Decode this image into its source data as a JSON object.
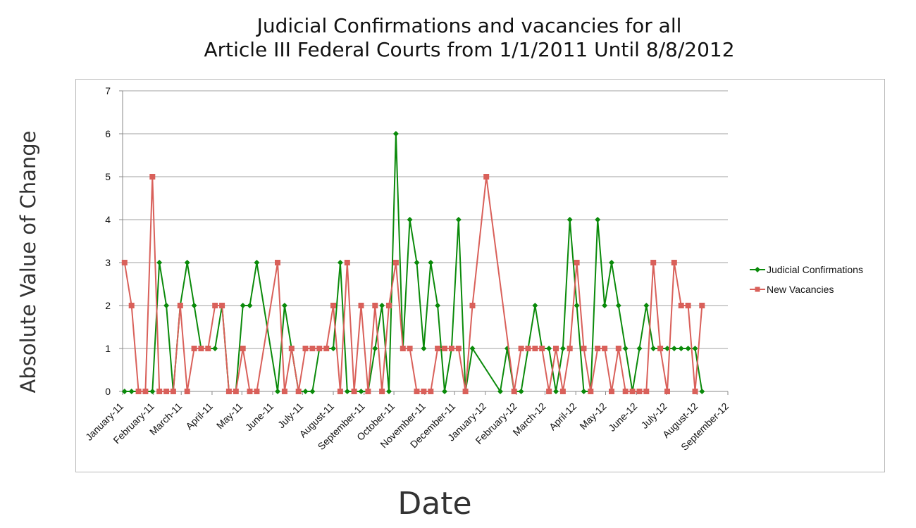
{
  "chart_data": {
    "type": "line",
    "title_lines": [
      "Judicial Confirmations and vacancies for all",
      "Article III Federal Courts from 1/1/2011 Until 8/8/2012"
    ],
    "xlabel": "Date",
    "ylabel": "Absolute Value of Change",
    "ylim": [
      0,
      7
    ],
    "yticks": [
      0,
      1,
      2,
      3,
      4,
      5,
      6,
      7
    ],
    "x_categories": [
      "January-11",
      "February-11",
      "March-11",
      "April-11",
      "May-11",
      "June-11",
      "July-11",
      "August-11",
      "September-11",
      "October-11",
      "November-11",
      "December-11",
      "January-12",
      "February-12",
      "March-12",
      "April-12",
      "May-12",
      "June-12",
      "July-12",
      "August-12",
      "September-12"
    ],
    "grid": true,
    "legend_position": "right",
    "series": [
      {
        "name": "Judicial Confirmations",
        "color": "#0a8a0a",
        "marker": "diamond",
        "points": [
          [
            "2011-01-03",
            0
          ],
          [
            "2011-01-10",
            0
          ],
          [
            "2011-01-17",
            0
          ],
          [
            "2011-01-24",
            0
          ],
          [
            "2011-01-31",
            0
          ],
          [
            "2011-02-07",
            3
          ],
          [
            "2011-02-14",
            2
          ],
          [
            "2011-02-21",
            0
          ],
          [
            "2011-02-28",
            2
          ],
          [
            "2011-03-07",
            3
          ],
          [
            "2011-03-14",
            2
          ],
          [
            "2011-03-21",
            1
          ],
          [
            "2011-03-28",
            1
          ],
          [
            "2011-04-04",
            1
          ],
          [
            "2011-04-11",
            2
          ],
          [
            "2011-04-18",
            0
          ],
          [
            "2011-04-25",
            0
          ],
          [
            "2011-05-02",
            2
          ],
          [
            "2011-05-09",
            2
          ],
          [
            "2011-05-16",
            3
          ],
          [
            "2011-06-06",
            0
          ],
          [
            "2011-06-13",
            2
          ],
          [
            "2011-06-20",
            1
          ],
          [
            "2011-06-27",
            0
          ],
          [
            "2011-07-04",
            0
          ],
          [
            "2011-07-11",
            0
          ],
          [
            "2011-07-18",
            1
          ],
          [
            "2011-07-25",
            1
          ],
          [
            "2011-08-01",
            1
          ],
          [
            "2011-08-08",
            3
          ],
          [
            "2011-08-15",
            0
          ],
          [
            "2011-08-22",
            0
          ],
          [
            "2011-08-29",
            0
          ],
          [
            "2011-09-05",
            0
          ],
          [
            "2011-09-12",
            1
          ],
          [
            "2011-09-19",
            2
          ],
          [
            "2011-09-26",
            0
          ],
          [
            "2011-10-03",
            6
          ],
          [
            "2011-10-10",
            1
          ],
          [
            "2011-10-17",
            4
          ],
          [
            "2011-10-24",
            3
          ],
          [
            "2011-10-31",
            1
          ],
          [
            "2011-11-07",
            3
          ],
          [
            "2011-11-14",
            2
          ],
          [
            "2011-11-21",
            0
          ],
          [
            "2011-11-28",
            1
          ],
          [
            "2011-12-05",
            4
          ],
          [
            "2011-12-12",
            0
          ],
          [
            "2011-12-19",
            1
          ],
          [
            "2012-01-16",
            0
          ],
          [
            "2012-01-23",
            1
          ],
          [
            "2012-01-30",
            0
          ],
          [
            "2012-02-06",
            0
          ],
          [
            "2012-02-13",
            1
          ],
          [
            "2012-02-20",
            2
          ],
          [
            "2012-02-27",
            1
          ],
          [
            "2012-03-05",
            1
          ],
          [
            "2012-03-12",
            0
          ],
          [
            "2012-03-19",
            1
          ],
          [
            "2012-03-26",
            4
          ],
          [
            "2012-04-02",
            2
          ],
          [
            "2012-04-09",
            0
          ],
          [
            "2012-04-16",
            0
          ],
          [
            "2012-04-23",
            4
          ],
          [
            "2012-04-30",
            2
          ],
          [
            "2012-05-07",
            3
          ],
          [
            "2012-05-14",
            2
          ],
          [
            "2012-05-21",
            1
          ],
          [
            "2012-05-28",
            0
          ],
          [
            "2012-06-04",
            1
          ],
          [
            "2012-06-11",
            2
          ],
          [
            "2012-06-18",
            1
          ],
          [
            "2012-06-25",
            1
          ],
          [
            "2012-07-02",
            1
          ],
          [
            "2012-07-09",
            1
          ],
          [
            "2012-07-16",
            1
          ],
          [
            "2012-07-23",
            1
          ],
          [
            "2012-07-30",
            1
          ],
          [
            "2012-08-06",
            0
          ]
        ]
      },
      {
        "name": "New Vacancies",
        "color": "#d9605a",
        "marker": "square",
        "points": [
          [
            "2011-01-03",
            3
          ],
          [
            "2011-01-10",
            2
          ],
          [
            "2011-01-17",
            0
          ],
          [
            "2011-01-24",
            0
          ],
          [
            "2011-01-31",
            5
          ],
          [
            "2011-02-07",
            0
          ],
          [
            "2011-02-14",
            0
          ],
          [
            "2011-02-21",
            0
          ],
          [
            "2011-02-28",
            2
          ],
          [
            "2011-03-07",
            0
          ],
          [
            "2011-03-14",
            1
          ],
          [
            "2011-03-21",
            1
          ],
          [
            "2011-03-28",
            1
          ],
          [
            "2011-04-04",
            2
          ],
          [
            "2011-04-11",
            2
          ],
          [
            "2011-04-18",
            0
          ],
          [
            "2011-04-25",
            0
          ],
          [
            "2011-05-02",
            1
          ],
          [
            "2011-05-09",
            0
          ],
          [
            "2011-05-16",
            0
          ],
          [
            "2011-06-06",
            3
          ],
          [
            "2011-06-13",
            0
          ],
          [
            "2011-06-20",
            1
          ],
          [
            "2011-06-27",
            0
          ],
          [
            "2011-07-04",
            1
          ],
          [
            "2011-07-11",
            1
          ],
          [
            "2011-07-18",
            1
          ],
          [
            "2011-07-25",
            1
          ],
          [
            "2011-08-01",
            2
          ],
          [
            "2011-08-08",
            0
          ],
          [
            "2011-08-15",
            3
          ],
          [
            "2011-08-22",
            0
          ],
          [
            "2011-08-29",
            2
          ],
          [
            "2011-09-05",
            0
          ],
          [
            "2011-09-12",
            2
          ],
          [
            "2011-09-19",
            0
          ],
          [
            "2011-09-26",
            2
          ],
          [
            "2011-10-03",
            3
          ],
          [
            "2011-10-10",
            1
          ],
          [
            "2011-10-17",
            1
          ],
          [
            "2011-10-24",
            0
          ],
          [
            "2011-10-31",
            0
          ],
          [
            "2011-11-07",
            0
          ],
          [
            "2011-11-14",
            1
          ],
          [
            "2011-11-21",
            1
          ],
          [
            "2011-11-28",
            1
          ],
          [
            "2011-12-05",
            1
          ],
          [
            "2011-12-12",
            0
          ],
          [
            "2011-12-19",
            2
          ],
          [
            "2012-01-02",
            5
          ],
          [
            "2012-01-30",
            0
          ],
          [
            "2012-02-06",
            1
          ],
          [
            "2012-02-13",
            1
          ],
          [
            "2012-02-20",
            1
          ],
          [
            "2012-02-27",
            1
          ],
          [
            "2012-03-05",
            0
          ],
          [
            "2012-03-12",
            1
          ],
          [
            "2012-03-19",
            0
          ],
          [
            "2012-03-26",
            1
          ],
          [
            "2012-04-02",
            3
          ],
          [
            "2012-04-09",
            1
          ],
          [
            "2012-04-16",
            0
          ],
          [
            "2012-04-23",
            1
          ],
          [
            "2012-04-30",
            1
          ],
          [
            "2012-05-07",
            0
          ],
          [
            "2012-05-14",
            1
          ],
          [
            "2012-05-21",
            0
          ],
          [
            "2012-05-28",
            0
          ],
          [
            "2012-06-04",
            0
          ],
          [
            "2012-06-11",
            0
          ],
          [
            "2012-06-18",
            3
          ],
          [
            "2012-06-25",
            1
          ],
          [
            "2012-07-02",
            0
          ],
          [
            "2012-07-09",
            3
          ],
          [
            "2012-07-16",
            2
          ],
          [
            "2012-07-23",
            2
          ],
          [
            "2012-07-30",
            0
          ],
          [
            "2012-08-06",
            2
          ]
        ]
      }
    ]
  }
}
